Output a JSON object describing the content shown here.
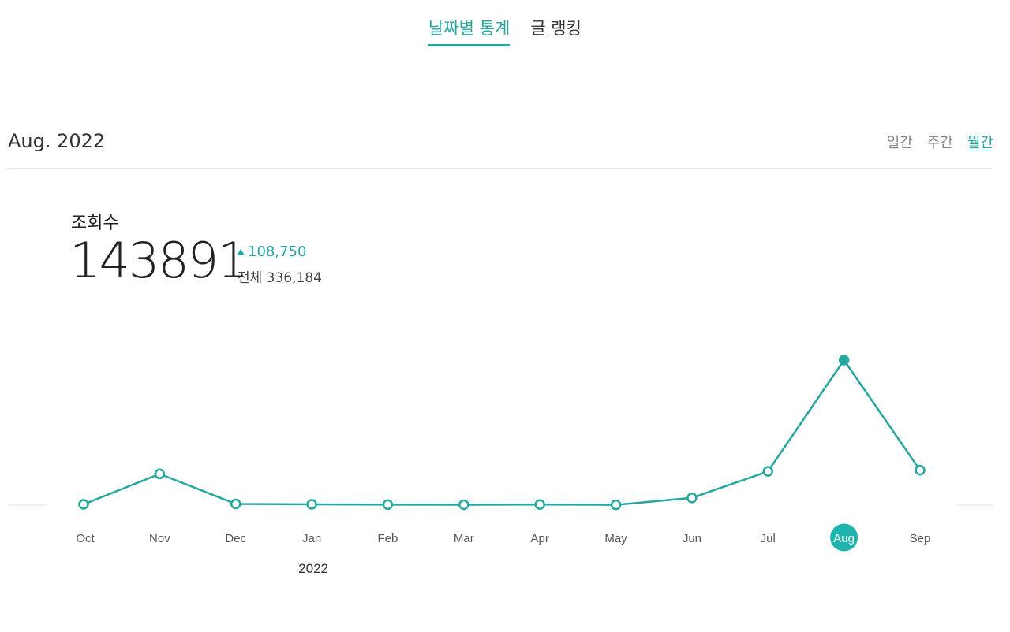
{
  "nav": {
    "tabs": [
      {
        "label": "날짜별 통계",
        "active": true
      },
      {
        "label": "글 랭킹",
        "active": false
      }
    ]
  },
  "period": {
    "title": "Aug. 2022",
    "tabs": [
      {
        "label": "일간",
        "active": false
      },
      {
        "label": "주간",
        "active": false
      },
      {
        "label": "월간",
        "active": true
      }
    ]
  },
  "metric": {
    "label": "조회수",
    "value": "143891",
    "change": "108,750",
    "change_direction": "up",
    "total": "전체 336,184"
  },
  "chart_data": {
    "type": "line",
    "categories": [
      "Oct",
      "Nov",
      "Dec",
      "Jan",
      "Feb",
      "Mar",
      "Apr",
      "May",
      "Jun",
      "Jul",
      "Aug",
      "Sep"
    ],
    "year_label": "2022",
    "selected": "Aug",
    "values": [
      800,
      31000,
      1200,
      800,
      500,
      400,
      600,
      300,
      7200,
      33500,
      143891,
      34700
    ],
    "ylim": [
      0,
      143891
    ],
    "color": "#25a79f"
  }
}
